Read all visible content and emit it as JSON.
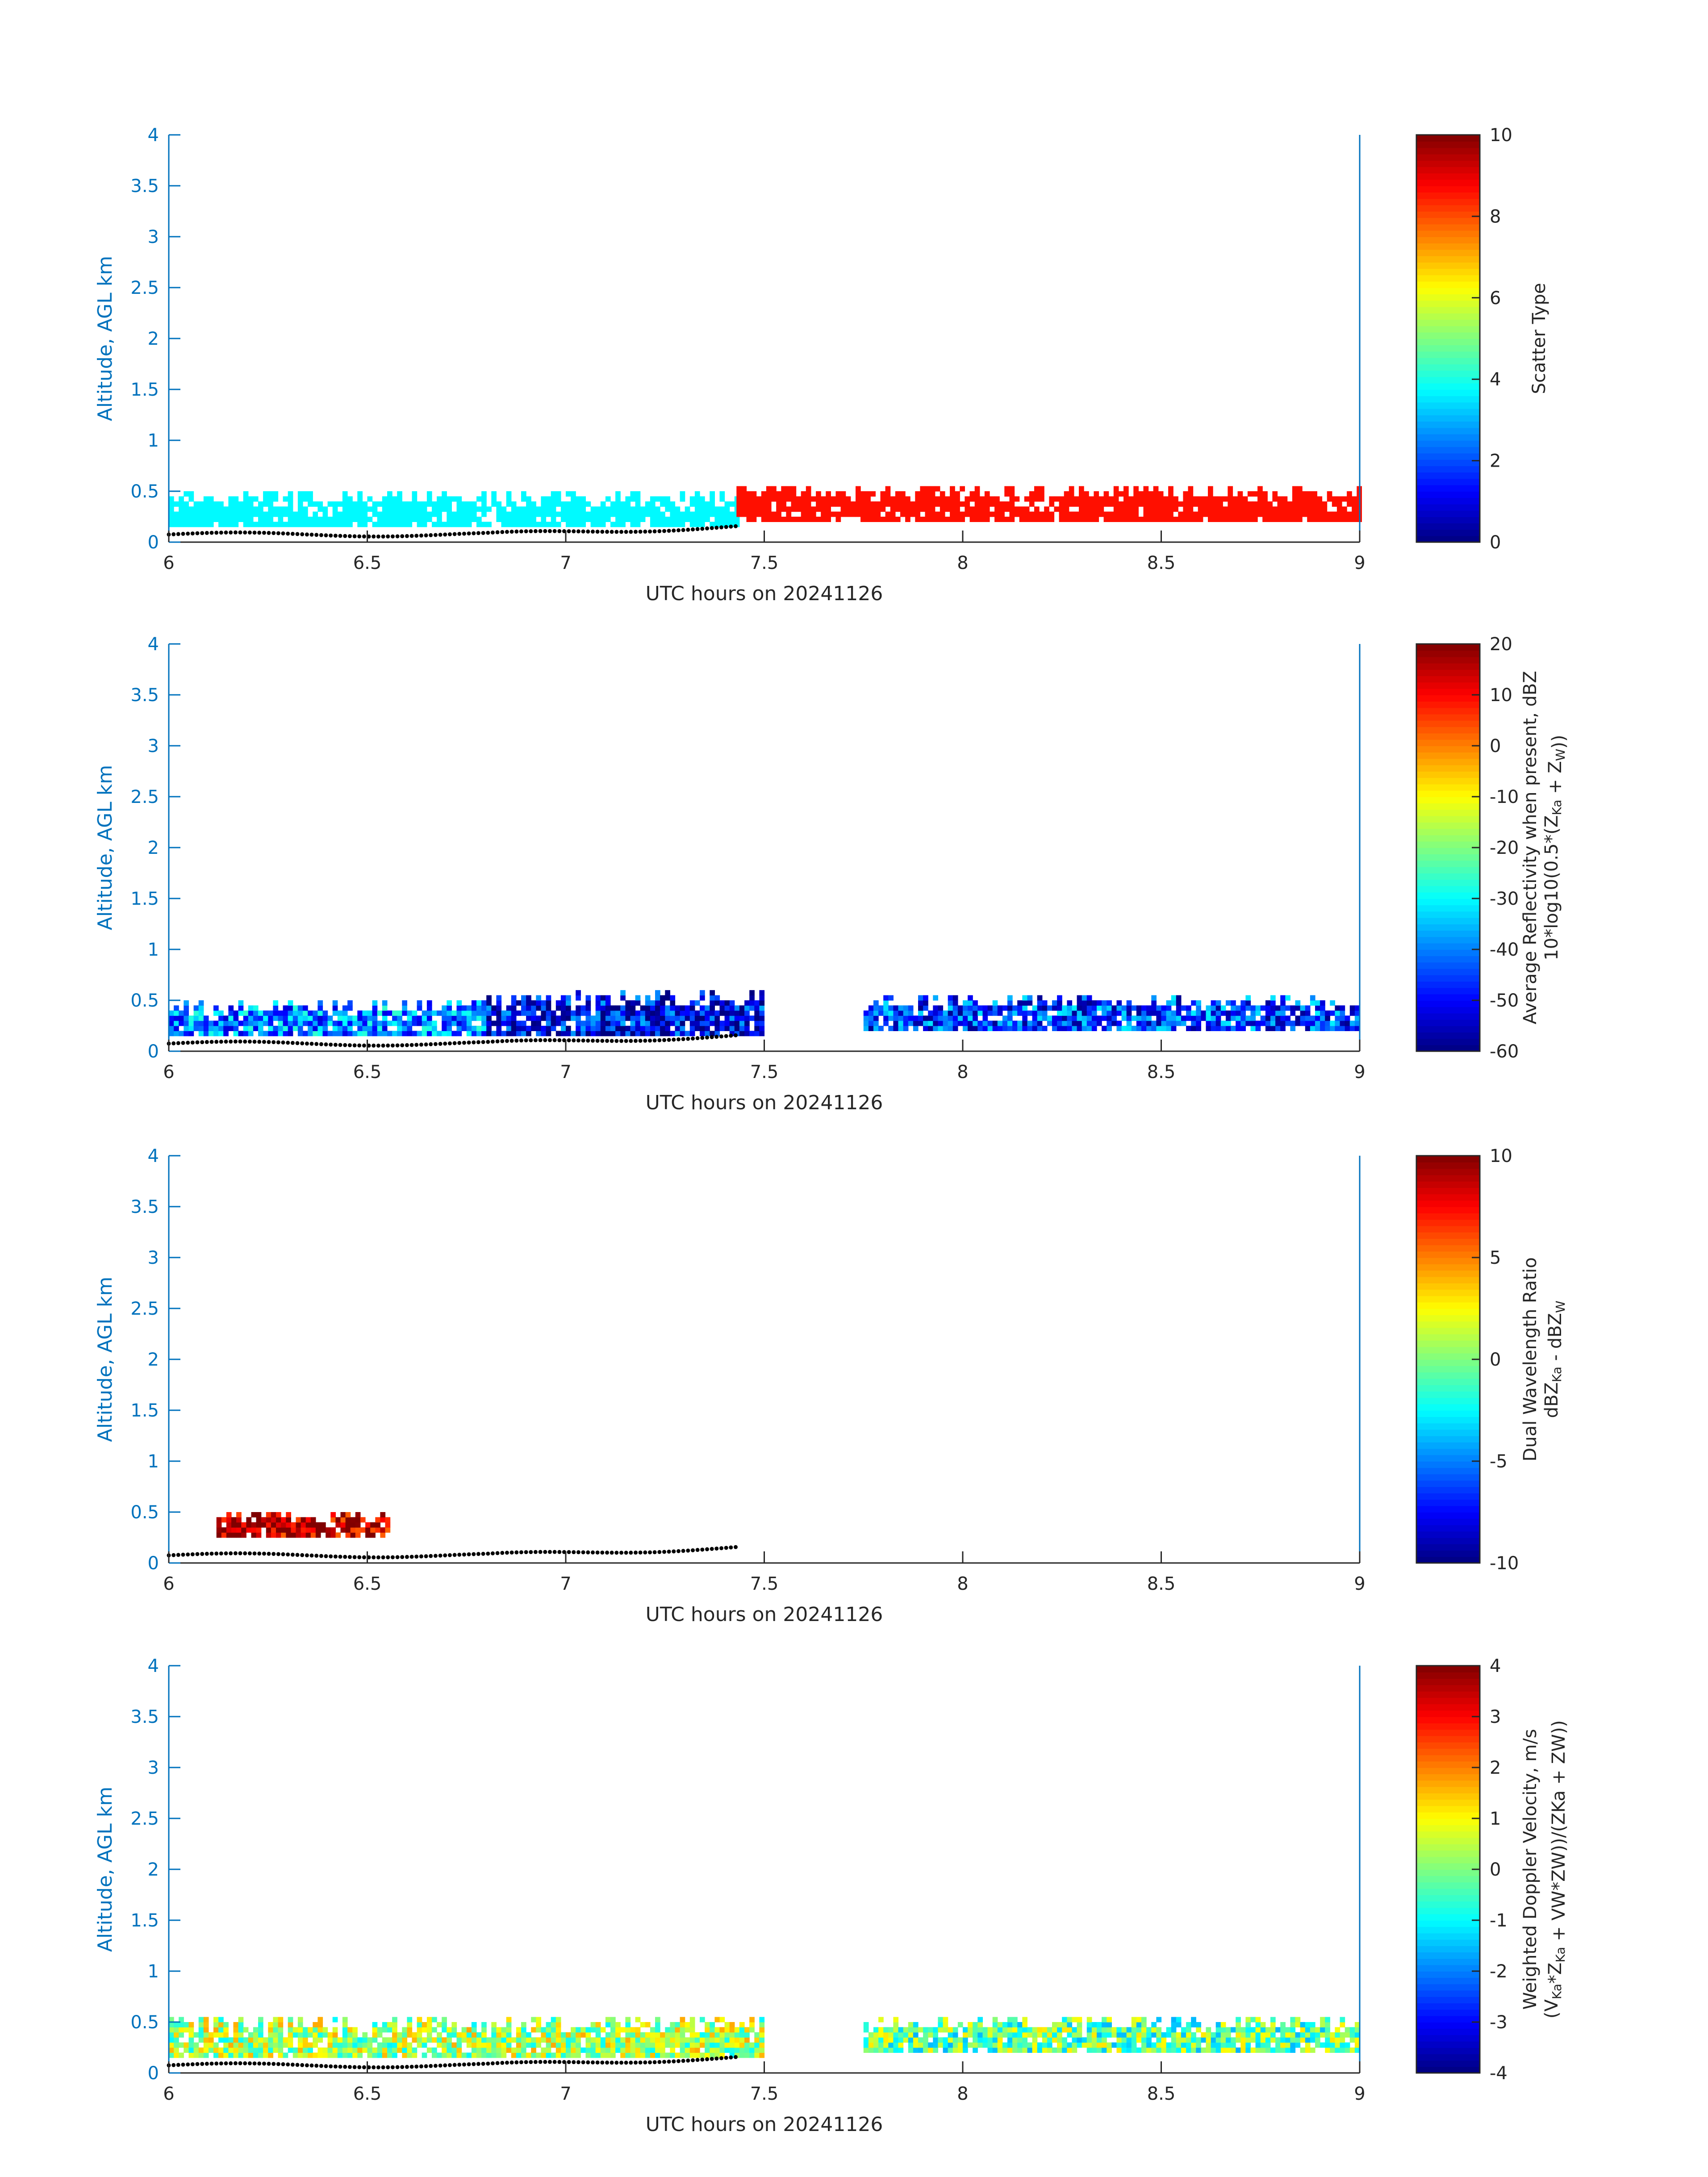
{
  "figure": {
    "axis_tick_color": "#0072bd",
    "ground_marker_color": "#000000"
  },
  "chart_data": [
    {
      "type": "heatmap",
      "xlabel": "UTC hours on 20241126",
      "ylabel": "Altitude, AGL km",
      "xlim": [
        6,
        9
      ],
      "ylim": [
        0,
        4
      ],
      "xticks": [
        "6",
        "6.5",
        "7",
        "7.5",
        "8",
        "8.5",
        "9"
      ],
      "yticks": [
        "0",
        "0.5",
        "1",
        "1.5",
        "2",
        "2.5",
        "3",
        "3.5",
        "4"
      ],
      "colorbar": {
        "label": "Scatter Type",
        "clim": [
          0,
          10
        ],
        "ticks": [
          "0",
          "2",
          "4",
          "6",
          "8",
          "10"
        ],
        "colormap": "jet"
      },
      "regions": [
        {
          "x0": 6.0,
          "x1": 7.43,
          "y0": 0.15,
          "y1": 0.5,
          "value": 3.7
        },
        {
          "x0": 7.43,
          "x1": 9.0,
          "y0": 0.2,
          "y1": 0.55,
          "value": 8.6
        }
      ]
    },
    {
      "type": "heatmap",
      "xlabel": "UTC hours on 20241126",
      "ylabel": "Altitude, AGL km",
      "xlim": [
        6,
        9
      ],
      "ylim": [
        0,
        4
      ],
      "xticks": [
        "6",
        "6.5",
        "7",
        "7.5",
        "8",
        "8.5",
        "9"
      ],
      "yticks": [
        "0",
        "0.5",
        "1",
        "1.5",
        "2",
        "2.5",
        "3",
        "3.5",
        "4"
      ],
      "colorbar": {
        "label": "Average Reflectivity when present, dBZ",
        "label2": "10*log10(0.5*(Z",
        "label2_sub1": "Ka",
        "label2_mid": " + Z",
        "label2_sub2": "W",
        "label2_end": "))",
        "clim": [
          -60,
          20
        ],
        "ticks": [
          "-60",
          "-50",
          "-40",
          "-30",
          "-20",
          "-10",
          "0",
          "10",
          "20"
        ],
        "colormap": "jet"
      },
      "regions": [
        {
          "x0": 6.0,
          "x1": 6.8,
          "y0": 0.15,
          "y1": 0.5,
          "value": -40
        },
        {
          "x0": 6.8,
          "x1": 7.5,
          "y0": 0.15,
          "y1": 0.6,
          "value": -50
        },
        {
          "x0": 7.75,
          "x1": 9.0,
          "y0": 0.2,
          "y1": 0.55,
          "value": -45
        }
      ]
    },
    {
      "type": "heatmap",
      "xlabel": "UTC hours on 20241126",
      "ylabel": "Altitude, AGL km",
      "xlim": [
        6,
        9
      ],
      "ylim": [
        0,
        4
      ],
      "xticks": [
        "6",
        "6.5",
        "7",
        "7.5",
        "8",
        "8.5",
        "9"
      ],
      "yticks": [
        "0",
        "0.5",
        "1",
        "1.5",
        "2",
        "2.5",
        "3",
        "3.5",
        "4"
      ],
      "colorbar": {
        "label": "Dual Wavelength Ratio",
        "label2": "dBZ",
        "label2_sub1": "Ka",
        "label2_mid": " - dBZ",
        "label2_sub2": "W",
        "label2_end": "",
        "clim": [
          -10,
          10
        ],
        "ticks": [
          "-10",
          "-5",
          "0",
          "5",
          "10"
        ],
        "colormap": "jet"
      },
      "regions": [
        {
          "x0": 6.12,
          "x1": 6.55,
          "y0": 0.25,
          "y1": 0.5,
          "value": 9
        }
      ]
    },
    {
      "type": "heatmap",
      "xlabel": "UTC hours on 20241126",
      "ylabel": "Altitude, AGL km",
      "xlim": [
        6,
        9
      ],
      "ylim": [
        0,
        4
      ],
      "xticks": [
        "6",
        "6.5",
        "7",
        "7.5",
        "8",
        "8.5",
        "9"
      ],
      "yticks": [
        "0",
        "0.5",
        "1",
        "1.5",
        "2",
        "2.5",
        "3",
        "3.5",
        "4"
      ],
      "colorbar": {
        "label": "Weighted Doppler Velocity, m/s",
        "label2": "(V",
        "label2_sub1": "Ka",
        "label2_mid": "*Z",
        "label2_sub2": "Ka",
        "label2_end": " + V",
        "label2_tail": "W*ZW))/(ZKa + ZW))",
        "clim": [
          -4,
          4
        ],
        "ticks": [
          "-4",
          "-3",
          "-2",
          "-1",
          "0",
          "1",
          "2",
          "3",
          "4"
        ],
        "colormap": "jet"
      },
      "regions": [
        {
          "x0": 6.0,
          "x1": 7.5,
          "y0": 0.15,
          "y1": 0.55,
          "value": 0.3
        },
        {
          "x0": 7.75,
          "x1": 9.0,
          "y0": 0.2,
          "y1": 0.55,
          "value": -0.2
        }
      ]
    }
  ]
}
